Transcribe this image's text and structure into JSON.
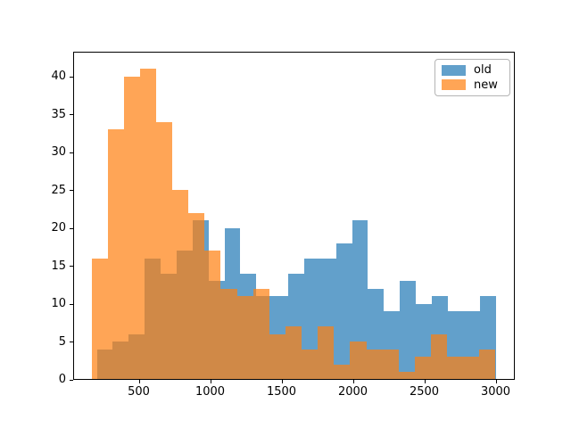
{
  "figure": {
    "background": "#ffffff"
  },
  "chart_data": {
    "type": "histogram",
    "title": "",
    "xlabel": "",
    "ylabel": "",
    "xlim": [
      30,
      3140
    ],
    "ylim": [
      0,
      43
    ],
    "x_ticks": [
      "500",
      "1000",
      "1500",
      "2000",
      "2500",
      "3000"
    ],
    "x_tick_values": [
      500,
      1000,
      1500,
      2000,
      2500,
      3000
    ],
    "y_ticks": [
      "0",
      "5",
      "10",
      "15",
      "20",
      "25",
      "30",
      "35",
      "40"
    ],
    "y_tick_values": [
      0,
      5,
      10,
      15,
      20,
      25,
      30,
      35,
      40
    ],
    "grid": false,
    "legend_position": "upper right",
    "colors": {
      "old_fill": "#62a0cb",
      "new_fill_rgba": "rgba(255,127,14,0.7)",
      "new_over_white": "#ffa556",
      "overlap": "#d08947",
      "axis": "#000000"
    },
    "series": [
      {
        "name": "old",
        "legend_label": "old",
        "base_color": "#1f77b4",
        "alpha": 0.7,
        "bin_start": 206.3,
        "bin_width": 111.75,
        "counts": [
          4,
          5,
          6,
          16,
          14,
          17,
          21,
          13,
          20,
          14,
          11,
          11,
          14,
          16,
          16,
          18,
          21,
          12,
          9,
          13,
          10,
          11,
          9,
          9,
          11
        ]
      },
      {
        "name": "new",
        "legend_label": "new",
        "base_color": "#ff7f0e",
        "alpha": 0.7,
        "bin_start": 169.0,
        "bin_width": 113.24,
        "counts": [
          16,
          33,
          40,
          41,
          34,
          25,
          22,
          17,
          12,
          11,
          12,
          6,
          7,
          4,
          7,
          2,
          5,
          4,
          4,
          1,
          3,
          6,
          3,
          3,
          4
        ]
      }
    ]
  }
}
